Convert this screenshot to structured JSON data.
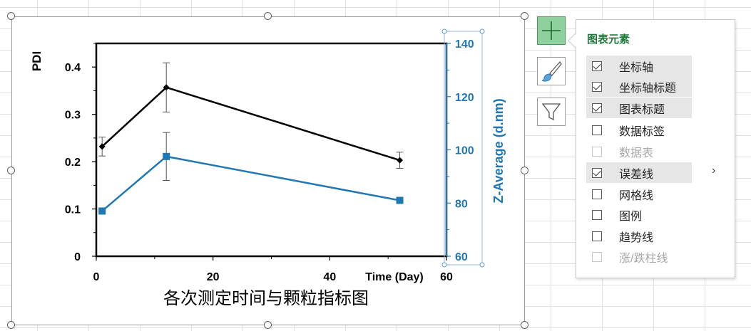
{
  "chart_data": {
    "type": "line",
    "title": "各次测定时间与颗粒指标图",
    "xlabel": "Time (Day)",
    "ylabel": "PDI",
    "y2label": "Z-Average (d.nm)",
    "xlim": [
      0,
      60
    ],
    "ylim": [
      0,
      0.45
    ],
    "y2lim": [
      60,
      140
    ],
    "x_ticks": [
      "0",
      "20",
      "40",
      "60"
    ],
    "y_ticks": [
      "0",
      "0.1",
      "0.2",
      "0.3",
      "0.4"
    ],
    "y2_ticks": [
      "60",
      "80",
      "100",
      "120",
      "140"
    ],
    "grid": false,
    "legend": "none",
    "series": [
      {
        "axis": "left",
        "color": "#000000",
        "marker": "diamond",
        "x": [
          1,
          12,
          52
        ],
        "values": [
          0.232,
          0.357,
          0.203
        ],
        "error": [
          0.02,
          0.052,
          0.017
        ]
      },
      {
        "axis": "right",
        "color": "#1f77b4",
        "marker": "square",
        "x": [
          1,
          12,
          52
        ],
        "values": [
          77,
          97.5,
          81
        ],
        "error": [
          0,
          9,
          0
        ]
      }
    ]
  },
  "panel": {
    "title": "图表元素",
    "options": [
      {
        "label": "坐标轴",
        "checked": true,
        "enabled": true,
        "highlight": true
      },
      {
        "label": "坐标轴标题",
        "checked": true,
        "enabled": true,
        "highlight": true
      },
      {
        "label": "图表标题",
        "checked": true,
        "enabled": true,
        "highlight": true
      },
      {
        "label": "数据标签",
        "checked": false,
        "enabled": true,
        "highlight": false
      },
      {
        "label": "数据表",
        "checked": false,
        "enabled": false,
        "highlight": false
      },
      {
        "label": "误差线",
        "checked": true,
        "enabled": true,
        "highlight": true
      },
      {
        "label": "网格线",
        "checked": false,
        "enabled": true,
        "highlight": false
      },
      {
        "label": "图例",
        "checked": false,
        "enabled": true,
        "highlight": false
      },
      {
        "label": "趋势线",
        "checked": false,
        "enabled": true,
        "highlight": false
      },
      {
        "label": "涨/跌柱线",
        "checked": false,
        "enabled": false,
        "highlight": false
      }
    ],
    "submenu_chevron": "›"
  },
  "side_buttons": [
    {
      "name": "chart-elements-button",
      "icon": "plus-icon"
    },
    {
      "name": "chart-styles-button",
      "icon": "paintbrush-icon"
    },
    {
      "name": "chart-filters-button",
      "icon": "funnel-icon"
    }
  ]
}
